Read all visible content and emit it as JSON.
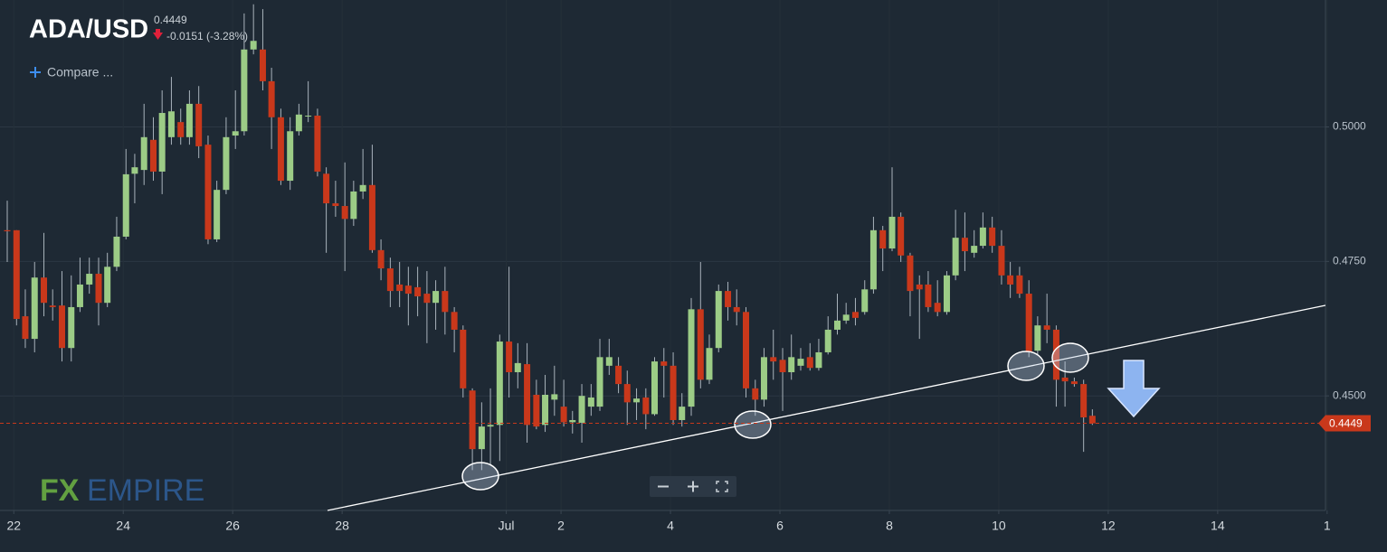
{
  "header": {
    "symbol": "ADA/USD",
    "change": "-0.0151 (-3.28%)",
    "compare": "Compare ...",
    "logo": [
      "FX",
      "EMPIRE"
    ]
  },
  "chart_data": {
    "type": "candlestick",
    "x": [
      21.88,
      22.05,
      22.21,
      22.38,
      22.55,
      22.71,
      22.88,
      23.05,
      23.21,
      23.38,
      23.55,
      23.71,
      23.88,
      24.05,
      24.21,
      24.38,
      24.55,
      24.71,
      24.88,
      25.05,
      25.21,
      25.38,
      25.55,
      25.71,
      25.88,
      26.05,
      26.21,
      26.38,
      26.55,
      26.71,
      26.88,
      27.05,
      27.21,
      27.38,
      27.55,
      27.71,
      27.88,
      28.05,
      28.21,
      28.38,
      28.55,
      28.71,
      28.88,
      29.05,
      29.21,
      29.38,
      29.55,
      29.71,
      29.88,
      30.05,
      30.21,
      30.38,
      30.55,
      30.71,
      30.88,
      31.05,
      31.21,
      31.38,
      31.55,
      31.71,
      31.88,
      32.05,
      32.21,
      32.38,
      32.55,
      32.71,
      32.88,
      33.05,
      33.21,
      33.38,
      33.55,
      33.71,
      33.88,
      34.05,
      34.21,
      34.38,
      34.55,
      34.71,
      34.88,
      35.05,
      35.21,
      35.38,
      35.55,
      35.71,
      35.88,
      36.05,
      36.21,
      36.38,
      36.55,
      36.71,
      36.88,
      37.05,
      37.21,
      37.38,
      37.55,
      37.71,
      37.88,
      38.05,
      38.21,
      38.38,
      38.55,
      38.71,
      38.88,
      39.05,
      39.21,
      39.38,
      39.55,
      39.71,
      39.88,
      40.05,
      40.21,
      40.38,
      40.55,
      40.71,
      40.88,
      41.05,
      41.21,
      41.38,
      41.55,
      41.71
    ],
    "open": [
      0.4808,
      0.4808,
      0.4648,
      0.4606,
      0.472,
      0.4668,
      0.4668,
      0.4589,
      0.4665,
      0.4707,
      0.4727,
      0.4673,
      0.474,
      0.4796,
      0.4913,
      0.492,
      0.4976,
      0.4917,
      0.4981,
      0.5009,
      0.4981,
      0.5043,
      0.4967,
      0.4791,
      0.4883,
      0.4984,
      0.4992,
      0.5144,
      0.5144,
      0.5085,
      0.5018,
      0.49,
      0.4992,
      0.5021,
      0.5021,
      0.4913,
      0.4858,
      0.4853,
      0.4829,
      0.488,
      0.4892,
      0.4771,
      0.4737,
      0.4707,
      0.4705,
      0.4702,
      0.469,
      0.4673,
      0.4695,
      0.4656,
      0.4623,
      0.451,
      0.4401,
      0.4443,
      0.4446,
      0.4601,
      0.4544,
      0.4559,
      0.4502,
      0.4446,
      0.4493,
      0.448,
      0.4451,
      0.445,
      0.448,
      0.448,
      0.4556,
      0.4556,
      0.4522,
      0.4488,
      0.4497,
      0.4466,
      0.4564,
      0.4556,
      0.4455,
      0.448,
      0.4661,
      0.453,
      0.4589,
      0.4695,
      0.4665,
      0.4656,
      0.4514,
      0.4493,
      0.4572,
      0.4567,
      0.4544,
      0.4556,
      0.4572,
      0.4552,
      0.4581,
      0.4623,
      0.464,
      0.4656,
      0.4656,
      0.4698,
      0.4808,
      0.4774,
      0.4833,
      0.4761,
      0.4707,
      0.4707,
      0.4673,
      0.4656,
      0.4724,
      0.4794,
      0.4766,
      0.4779,
      0.4813,
      0.4779,
      0.4724,
      0.4724,
      0.469,
      0.4584,
      0.4631,
      0.4623,
      0.4534,
      0.4527,
      0.4522,
      0.4463
    ],
    "high": [
      0.4863,
      0.4808,
      0.4698,
      0.4749,
      0.4803,
      0.4698,
      0.4732,
      0.4724,
      0.4757,
      0.4757,
      0.4757,
      0.4766,
      0.4833,
      0.4959,
      0.495,
      0.5043,
      0.5018,
      0.5068,
      0.5093,
      0.5034,
      0.5068,
      0.5076,
      0.4984,
      0.49,
      0.5018,
      0.5068,
      0.5211,
      0.5228,
      0.5219,
      0.511,
      0.5034,
      0.5018,
      0.5043,
      0.5085,
      0.5034,
      0.4925,
      0.49,
      0.4934,
      0.49,
      0.4959,
      0.4967,
      0.4791,
      0.4757,
      0.4749,
      0.474,
      0.474,
      0.4732,
      0.4715,
      0.474,
      0.4665,
      0.4631,
      0.4514,
      0.4488,
      0.4514,
      0.4614,
      0.474,
      0.4598,
      0.4598,
      0.453,
      0.4539,
      0.4556,
      0.453,
      0.4472,
      0.4522,
      0.4522,
      0.4606,
      0.4606,
      0.4572,
      0.4547,
      0.4514,
      0.4514,
      0.4572,
      0.4589,
      0.4581,
      0.4505,
      0.4682,
      0.4749,
      0.4614,
      0.4707,
      0.4712,
      0.4698,
      0.4665,
      0.453,
      0.4589,
      0.4623,
      0.4589,
      0.4614,
      0.4589,
      0.4598,
      0.4606,
      0.4648,
      0.469,
      0.4673,
      0.4682,
      0.4715,
      0.4833,
      0.4816,
      0.4925,
      0.4841,
      0.4766,
      0.4724,
      0.4732,
      0.4715,
      0.4732,
      0.4846,
      0.4841,
      0.4808,
      0.4841,
      0.4833,
      0.4808,
      0.4749,
      0.474,
      0.4715,
      0.4648,
      0.469,
      0.4631,
      0.4564,
      0.4534,
      0.453,
      0.4475
    ],
    "low": [
      0.4749,
      0.4631,
      0.4589,
      0.4581,
      0.4648,
      0.464,
      0.4564,
      0.4564,
      0.4656,
      0.469,
      0.4631,
      0.4665,
      0.4732,
      0.4791,
      0.4858,
      0.4892,
      0.49,
      0.4875,
      0.4967,
      0.4967,
      0.4967,
      0.4942,
      0.4782,
      0.4786,
      0.4875,
      0.4959,
      0.4984,
      0.5135,
      0.5068,
      0.4959,
      0.4892,
      0.4883,
      0.4984,
      0.5009,
      0.4908,
      0.4766,
      0.4833,
      0.4732,
      0.4816,
      0.4866,
      0.4766,
      0.4715,
      0.4665,
      0.4665,
      0.4631,
      0.4648,
      0.4598,
      0.4623,
      0.4614,
      0.4581,
      0.4497,
      0.4362,
      0.4362,
      0.4371,
      0.4379,
      0.4497,
      0.4514,
      0.4413,
      0.4438,
      0.4433,
      0.4463,
      0.4443,
      0.443,
      0.4413,
      0.4463,
      0.4472,
      0.4539,
      0.4505,
      0.4446,
      0.4455,
      0.4438,
      0.4463,
      0.4497,
      0.4446,
      0.4443,
      0.4463,
      0.4514,
      0.4522,
      0.4581,
      0.464,
      0.4631,
      0.4497,
      0.4463,
      0.448,
      0.453,
      0.4472,
      0.453,
      0.4547,
      0.4547,
      0.4547,
      0.4577,
      0.4614,
      0.4634,
      0.4631,
      0.4651,
      0.469,
      0.4732,
      0.4769,
      0.4749,
      0.4648,
      0.4606,
      0.4656,
      0.4648,
      0.4651,
      0.4715,
      0.4732,
      0.4757,
      0.4774,
      0.4766,
      0.4707,
      0.4682,
      0.4682,
      0.4572,
      0.4577,
      0.4598,
      0.448,
      0.448,
      0.4517,
      0.4396,
      0.4446
    ],
    "close": [
      0.4806,
      0.4643,
      0.4606,
      0.472,
      0.4673,
      0.4665,
      0.4589,
      0.4665,
      0.4707,
      0.4727,
      0.4673,
      0.474,
      0.4796,
      0.4912,
      0.4925,
      0.4981,
      0.4917,
      0.5026,
      0.5029,
      0.4981,
      0.5043,
      0.4964,
      0.4791,
      0.4883,
      0.4981,
      0.4992,
      0.5144,
      0.516,
      0.5085,
      0.5018,
      0.49,
      0.4992,
      0.5023,
      0.5021,
      0.4917,
      0.4858,
      0.4853,
      0.4829,
      0.488,
      0.4892,
      0.4771,
      0.4737,
      0.4695,
      0.4695,
      0.469,
      0.4685,
      0.4673,
      0.4695,
      0.4656,
      0.4623,
      0.4514,
      0.4401,
      0.4443,
      0.4446,
      0.4601,
      0.4544,
      0.4561,
      0.4446,
      0.4443,
      0.4502,
      0.4503,
      0.4451,
      0.4455,
      0.45,
      0.4497,
      0.4572,
      0.4572,
      0.4522,
      0.4488,
      0.4495,
      0.4466,
      0.4564,
      0.4556,
      0.4455,
      0.448,
      0.4661,
      0.453,
      0.4589,
      0.4695,
      0.4665,
      0.4656,
      0.4514,
      0.4493,
      0.4572,
      0.4564,
      0.4544,
      0.4572,
      0.4569,
      0.4552,
      0.4581,
      0.4623,
      0.464,
      0.4651,
      0.4645,
      0.4698,
      0.4808,
      0.4774,
      0.4833,
      0.4761,
      0.4695,
      0.4698,
      0.4665,
      0.4656,
      0.4724,
      0.4794,
      0.4769,
      0.4779,
      0.4813,
      0.4779,
      0.4724,
      0.4707,
      0.469,
      0.4581,
      0.4631,
      0.4623,
      0.453,
      0.4527,
      0.4522,
      0.446,
      0.4449
    ],
    "up_color": "#9ccc86",
    "down_color": "#c9381b",
    "last_price": 0.4449,
    "last_price_color": "#c9381b",
    "xlim": [
      21.88,
      45.97
    ],
    "ylim": [
      0.4287,
      0.5236
    ],
    "xticks": [
      22,
      24,
      26,
      28,
      {
        "value": 31,
        "label": "Jul"
      },
      {
        "value": 32,
        "label": "2"
      },
      {
        "value": 34,
        "label": "4"
      },
      {
        "value": 36,
        "label": "6"
      },
      {
        "value": 38,
        "label": "8"
      },
      {
        "value": 40,
        "label": "10"
      },
      {
        "value": 42,
        "label": "12"
      },
      {
        "value": 44,
        "label": "14"
      },
      {
        "value": 46,
        "label": "1"
      }
    ],
    "yticks": [
      {
        "value": 0.45,
        "label": "0.4500"
      },
      {
        "value": 0.475,
        "label": "0.4750"
      },
      {
        "value": 0.5,
        "label": "0.5000"
      }
    ],
    "grid": true
  }
}
